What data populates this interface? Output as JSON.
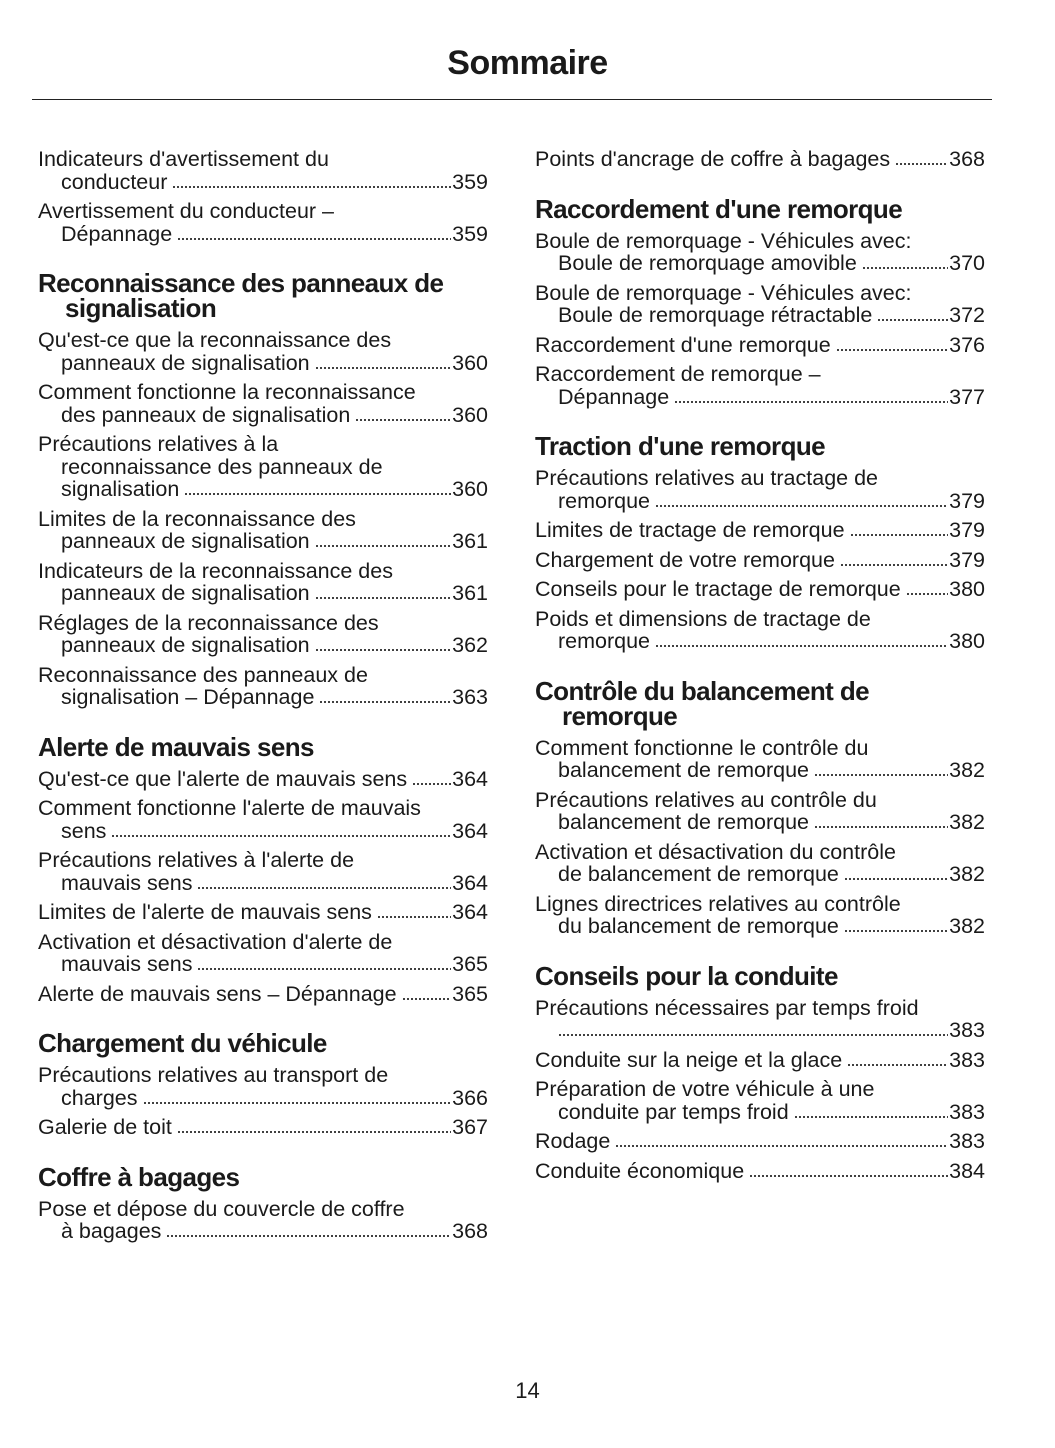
{
  "header": {
    "title": "Sommaire"
  },
  "columns": [
    {
      "sections": [
        {
          "entries": [
            {
              "lines": [
                "Indicateurs d'avertissement du",
                "conducteur"
              ],
              "page": "359"
            },
            {
              "lines": [
                "Avertissement du conducteur –",
                "Dépannage"
              ],
              "page": "359"
            }
          ]
        },
        {
          "heading": "Reconnaissance des panneaux de signalisation",
          "entries": [
            {
              "lines": [
                "Qu'est-ce que la reconnaissance des",
                "panneaux de signalisation"
              ],
              "page": "360"
            },
            {
              "lines": [
                "Comment fonctionne la reconnaissance",
                "des panneaux de signalisation"
              ],
              "page": "360"
            },
            {
              "lines": [
                "Précautions relatives à la",
                "reconnaissance des panneaux de",
                "signalisation"
              ],
              "page": "360"
            },
            {
              "lines": [
                "Limites de la reconnaissance des",
                "panneaux de signalisation"
              ],
              "page": "361"
            },
            {
              "lines": [
                "Indicateurs de la reconnaissance des",
                "panneaux de signalisation"
              ],
              "page": "361"
            },
            {
              "lines": [
                "Réglages de la reconnaissance des",
                "panneaux de signalisation"
              ],
              "page": "362"
            },
            {
              "lines": [
                "Reconnaissance des panneaux de",
                "signalisation – Dépannage"
              ],
              "page": "363"
            }
          ]
        },
        {
          "heading": "Alerte de mauvais sens",
          "entries": [
            {
              "lines": [
                "Qu'est-ce que l'alerte de mauvais sens"
              ],
              "page": "364"
            },
            {
              "lines": [
                "Comment fonctionne l'alerte de mauvais",
                "sens"
              ],
              "page": "364"
            },
            {
              "lines": [
                "Précautions relatives à l'alerte de",
                "mauvais sens"
              ],
              "page": "364"
            },
            {
              "lines": [
                "Limites de l'alerte de mauvais sens"
              ],
              "page": "364"
            },
            {
              "lines": [
                "Activation et désactivation d'alerte de",
                "mauvais sens"
              ],
              "page": "365"
            },
            {
              "lines": [
                "Alerte de mauvais sens – Dépannage"
              ],
              "page": "365"
            }
          ]
        },
        {
          "heading": "Chargement du véhicule",
          "entries": [
            {
              "lines": [
                "Précautions relatives au transport de",
                "charges"
              ],
              "page": "366"
            },
            {
              "lines": [
                "Galerie de toit"
              ],
              "page": "367"
            }
          ]
        },
        {
          "heading": "Coffre à bagages",
          "entries": [
            {
              "lines": [
                "Pose et dépose du couvercle de coffre",
                "à bagages"
              ],
              "page": "368"
            }
          ]
        }
      ]
    },
    {
      "sections": [
        {
          "entries": [
            {
              "lines": [
                "Points d'ancrage de coffre à bagages"
              ],
              "page": "368"
            }
          ]
        },
        {
          "heading": "Raccordement d'une remorque",
          "entries": [
            {
              "lines": [
                "Boule de remorquage - Véhicules avec:",
                "Boule de remorquage amovible"
              ],
              "page": "370"
            },
            {
              "lines": [
                "Boule de remorquage - Véhicules avec:",
                "Boule de remorquage rétractable"
              ],
              "page": "372"
            },
            {
              "lines": [
                "Raccordement d'une remorque"
              ],
              "page": "376"
            },
            {
              "lines": [
                "Raccordement de remorque –",
                "Dépannage"
              ],
              "page": "377"
            }
          ]
        },
        {
          "heading": "Traction d'une remorque",
          "entries": [
            {
              "lines": [
                "Précautions relatives au tractage de",
                "remorque"
              ],
              "page": "379"
            },
            {
              "lines": [
                "Limites de tractage de remorque"
              ],
              "page": "379"
            },
            {
              "lines": [
                "Chargement de votre remorque"
              ],
              "page": "379"
            },
            {
              "lines": [
                "Conseils pour le tractage de remorque"
              ],
              "page": "380"
            },
            {
              "lines": [
                "Poids et dimensions de tractage de",
                "remorque"
              ],
              "page": "380"
            }
          ]
        },
        {
          "heading": "Contrôle du balancement de remorque",
          "entries": [
            {
              "lines": [
                "Comment fonctionne le contrôle du",
                "balancement de remorque"
              ],
              "page": "382"
            },
            {
              "lines": [
                "Précautions relatives au contrôle du",
                "balancement de remorque"
              ],
              "page": "382"
            },
            {
              "lines": [
                "Activation et désactivation du contrôle",
                "de balancement de remorque"
              ],
              "page": "382"
            },
            {
              "lines": [
                "Lignes directrices relatives au contrôle",
                "du balancement de remorque"
              ],
              "page": "382"
            }
          ]
        },
        {
          "heading": "Conseils pour la conduite",
          "entries": [
            {
              "lines": [
                "Précautions nécessaires par temps froid"
              ],
              "page": "383"
            },
            {
              "lines": [
                "Conduite sur la neige et la glace"
              ],
              "page": "383"
            },
            {
              "lines": [
                "Préparation de votre véhicule à une",
                "conduite par temps froid"
              ],
              "page": "383"
            },
            {
              "lines": [
                "Rodage"
              ],
              "page": "383"
            },
            {
              "lines": [
                "Conduite économique"
              ],
              "page": "384"
            }
          ]
        }
      ]
    }
  ],
  "footer": {
    "page_number": "14"
  }
}
